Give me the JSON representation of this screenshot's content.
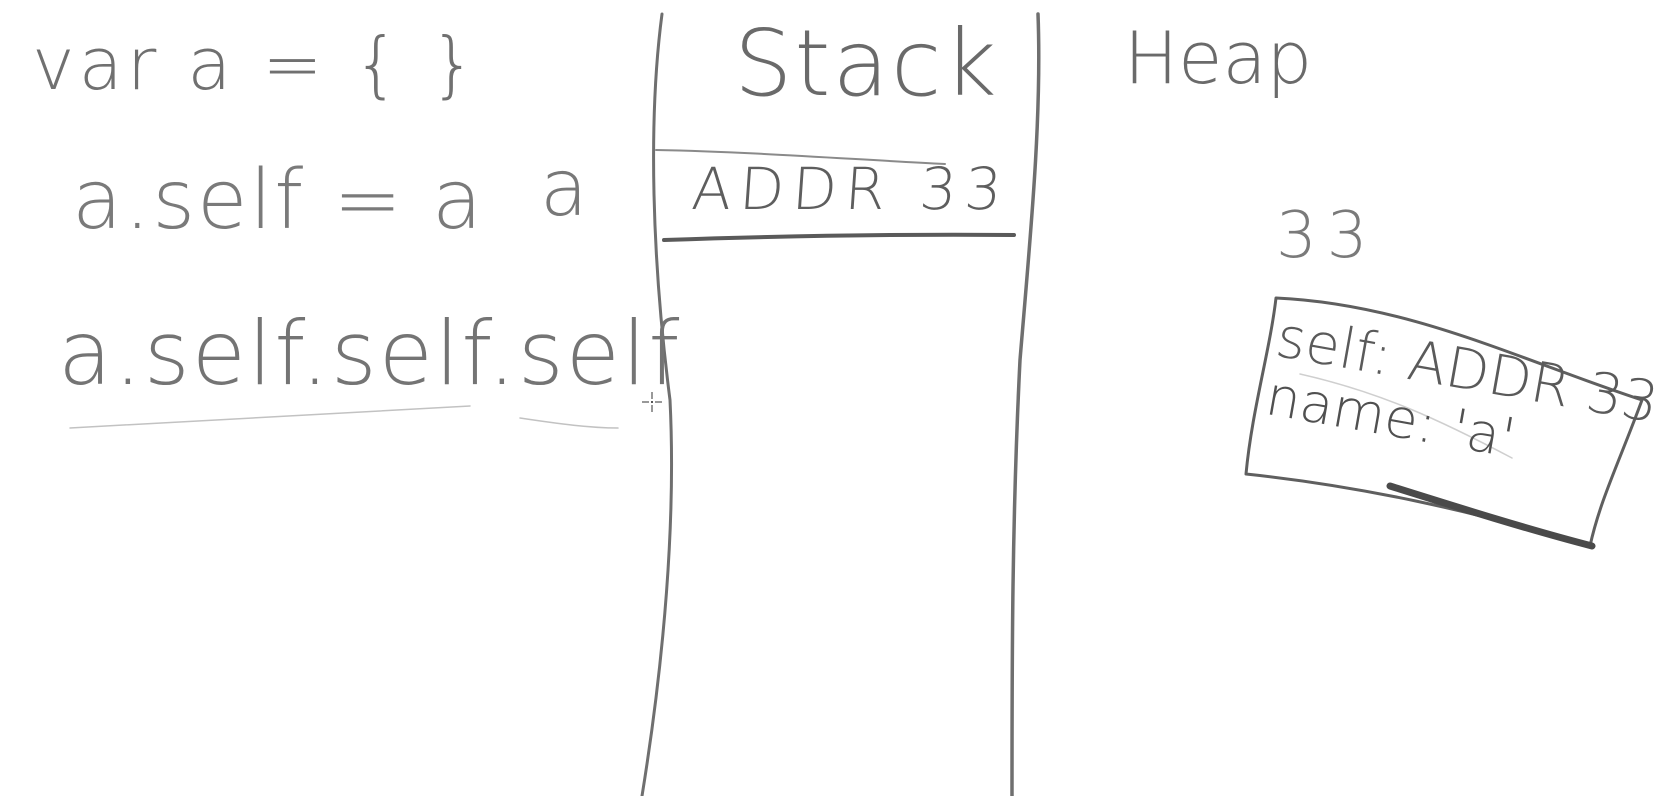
{
  "left_panel": {
    "code_line_1": "var a = { }",
    "code_line_2": "a.self = a",
    "code_line_3": "a.self.self.self"
  },
  "stack": {
    "title": "Stack",
    "variable_name": "a",
    "cell_value": "ADDR 33"
  },
  "heap": {
    "title": "Heap",
    "address": "33",
    "object_line_1": "self: ADDR 33",
    "object_line_2": "name: 'a'"
  },
  "icons": {
    "cursor": "crosshair-cursor-icon"
  },
  "colors": {
    "ink": "#6e6e6e",
    "background": "#ffffff"
  }
}
